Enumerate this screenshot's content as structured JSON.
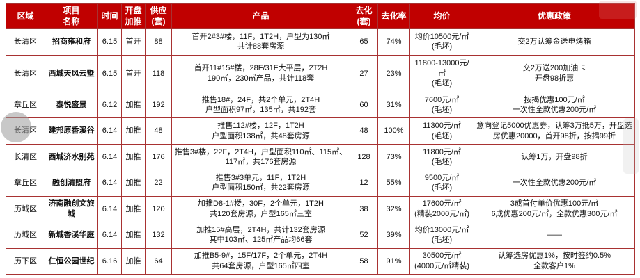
{
  "table": {
    "columns": [
      {
        "key": "region",
        "label": "区域"
      },
      {
        "key": "project",
        "label": "项目\n名称"
      },
      {
        "key": "date",
        "label": "时间"
      },
      {
        "key": "type",
        "label": "开盘\n加推"
      },
      {
        "key": "supply",
        "label": "供应\n(套)"
      },
      {
        "key": "product",
        "label": "产品"
      },
      {
        "key": "sold",
        "label": "去化\n(套)"
      },
      {
        "key": "rate",
        "label": "去化率"
      },
      {
        "key": "price",
        "label": "均价"
      },
      {
        "key": "policy",
        "label": "优惠政策"
      }
    ],
    "rows": [
      {
        "region": "长清区",
        "project": "招商雍和府",
        "date": "6.15",
        "type": "首开",
        "supply": "88",
        "product": "首开2#3#楼，11F，1T2H，户型为130㎡\n共计88套房源",
        "sold": "65",
        "rate": "74%",
        "price": "均价10500元/㎡\n(毛坯)",
        "policy": "交2万认筹金送电烤箱"
      },
      {
        "region": "长清区",
        "project": "西城天风云墅",
        "date": "6.15",
        "type": "首开",
        "supply": "118",
        "product": "首开11#15#楼，28F/31F大平层，2T2H\n190㎡，230㎡产品，共计118套",
        "sold": "27",
        "rate": "23%",
        "price": "11800-13000元/㎡\n(毛坯)",
        "policy": "交2万送200加油卡\n开盘98折惠"
      },
      {
        "region": "章丘区",
        "project": "泰悦盛景",
        "date": "6.12",
        "type": "加推",
        "supply": "192",
        "product": "推售18#，24F，共2个单元，2T4H\n户型面积97㎡，135㎡，共192套",
        "sold": "60",
        "rate": "31%",
        "price": "7600元/㎡\n(毛坯)",
        "policy": "按揭优惠100元/㎡\n一次性全款优惠200元/㎡"
      },
      {
        "region": "长清区",
        "project": "建邦原香溪谷",
        "date": "6.14",
        "type": "加推",
        "supply": "48",
        "product": "推售112#楼，12F，1T2H\n户型面积138㎡，共48套房源",
        "sold": "48",
        "rate": "100%",
        "price": "11300元/㎡\n(毛坯)",
        "policy": "意向登记5000优惠券，认筹3万抵5万，开盘选房优惠20000，首开98折，按揭99折"
      },
      {
        "region": "长清区",
        "project": "西城济水别苑",
        "date": "6.14",
        "type": "加推",
        "supply": "176",
        "product": "推售3#楼，22F，2T4H，户型面积110㎡、115㎡、117㎡，共176套房源",
        "sold": "128",
        "rate": "73%",
        "price": "11800元/㎡\n(毛坯)",
        "policy": "认筹1万，开盘98折"
      },
      {
        "region": "章丘区",
        "project": "融创清照府",
        "date": "6.14",
        "type": "加推",
        "supply": "22",
        "product": "推售3#3单元，11F，1T2H\n户型面积150㎡，共22套房源",
        "sold": "12",
        "rate": "55%",
        "price": "9500元/㎡\n(毛坯)",
        "policy": "一次性全款优惠200元/㎡"
      },
      {
        "region": "历城区",
        "project": "济南融创文旅城",
        "date": "6.14",
        "type": "加推",
        "supply": "120",
        "product": "加推D8-1#楼，30F，2个单元，1T2H\n共120套房源，户型165㎡三室",
        "sold": "38",
        "rate": "32%",
        "price": "17600元/㎡\n(精装2000元/㎡)",
        "policy": "3成首付单价优惠100元/㎡\n6成优惠200元/㎡，全款优惠300元/㎡"
      },
      {
        "region": "历城区",
        "project": "新城香溪华庭",
        "date": "6.14",
        "type": "加推",
        "supply": "132",
        "product": "加推15#高层，2T4H，共计132套房源\n其中103㎡、125㎡产品均66套",
        "sold": "52",
        "rate": "39%",
        "price": "均价13000元/㎡\n(毛坯)",
        "policy": "——"
      },
      {
        "region": "历下区",
        "project": "仁恒公园世纪",
        "date": "6.16",
        "type": "加推",
        "supply": "64",
        "product": "加推B5-9#，15F/17F，2个单元，2T4H\n共64套房源，户型165㎡四室",
        "sold": "58",
        "rate": "91%",
        "price": "30500元/㎡\n(4000元/㎡精装)",
        "policy": "认筹选房优惠1%，按时签约0.5%\n全款客户1%"
      }
    ]
  },
  "colors": {
    "header_bg": "#c00000",
    "header_text": "#ffffff",
    "border": "#a83232"
  }
}
